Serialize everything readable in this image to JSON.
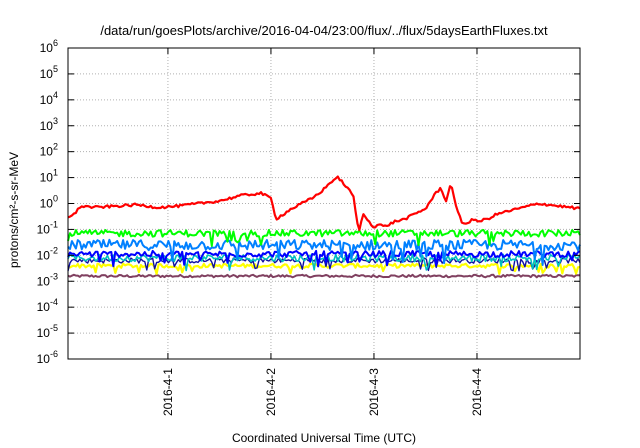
{
  "chart_data": {
    "type": "line",
    "title": "/data/run/goesPlots/archive/2016-04-04/23:00/flux/../flux/5daysEarthFluxes.txt",
    "xlabel": "Coordinated Universal Time (UTC)",
    "ylabel": "protons/cm²-s-sr-MeV",
    "x_unit": "days",
    "xlim": [
      -0.97,
      4.0
    ],
    "yscale": "log",
    "ylim_exponent": [
      -6,
      6
    ],
    "ytick_exponents": [
      -6,
      -5,
      -4,
      -3,
      -2,
      -1,
      0,
      1,
      2,
      3,
      4,
      5,
      6
    ],
    "xticks": [
      {
        "x": 0,
        "label": "2016-4-1"
      },
      {
        "x": 1,
        "label": "2016-4-2"
      },
      {
        "x": 2,
        "label": "2016-4-3"
      },
      {
        "x": 3,
        "label": "2016-4-4"
      }
    ],
    "grid": true,
    "legend": "none",
    "series": [
      {
        "color": "#ff0000",
        "width": 2.2,
        "noise": 0.05,
        "x": [
          -0.97,
          -0.9,
          -0.85,
          -0.7,
          -0.5,
          -0.3,
          -0.1,
          0.1,
          0.3,
          0.5,
          0.7,
          0.9,
          1.0,
          1.05,
          1.2,
          1.4,
          1.5,
          1.6,
          1.65,
          1.7,
          1.8,
          1.85,
          1.9,
          1.95,
          2.0,
          2.05,
          2.1,
          2.2,
          2.3,
          2.4,
          2.5,
          2.6,
          2.65,
          2.7,
          2.75,
          2.8,
          2.85,
          2.9,
          2.95,
          3.0,
          3.1,
          3.2,
          3.4,
          3.6,
          3.8,
          4.0
        ],
        "log": [
          -0.5,
          -0.4,
          -0.1,
          -0.15,
          -0.1,
          -0.05,
          -0.15,
          -0.1,
          0,
          0.1,
          0.3,
          0.4,
          0.2,
          -0.6,
          -0.2,
          0.2,
          0.5,
          0.9,
          1.0,
          0.8,
          0.3,
          -1.1,
          -0.4,
          -0.7,
          -0.9,
          -0.8,
          -0.9,
          -0.7,
          -0.6,
          -0.4,
          -0.2,
          0.4,
          0.6,
          0.1,
          0.8,
          -0.2,
          -0.7,
          -0.8,
          -0.6,
          -0.7,
          -0.6,
          -0.4,
          -0.2,
          0,
          -0.1,
          -0.2
        ]
      },
      {
        "color": "#00ff00",
        "width": 2.0,
        "noise": 0.13,
        "x": [
          -0.97,
          4.0
        ],
        "log": [
          -1.15,
          -1.15
        ]
      },
      {
        "color": "#0080ff",
        "width": 2.0,
        "noise": 0.2,
        "x": [
          -0.97,
          4.0
        ],
        "log": [
          -1.6,
          -1.6
        ]
      },
      {
        "color": "#0000ff",
        "width": 2.0,
        "noise": 0.12,
        "x": [
          -0.97,
          4.0
        ],
        "log": [
          -1.95,
          -1.95
        ]
      },
      {
        "color": "#00c0c0",
        "width": 1.6,
        "noise": 0.14,
        "x": [
          -0.97,
          4.0
        ],
        "log": [
          -2.1,
          -2.1
        ]
      },
      {
        "color": "#1010a0",
        "width": 1.4,
        "noise": 0.1,
        "x": [
          -0.97,
          4.0
        ],
        "log": [
          -2.2,
          -2.2
        ]
      },
      {
        "color": "#ffff00",
        "width": 2.2,
        "noise": 0.08,
        "x": [
          -0.97,
          4.0
        ],
        "log": [
          -2.4,
          -2.4
        ]
      },
      {
        "color": "#804060",
        "width": 2.0,
        "noise": 0.05,
        "x": [
          -0.97,
          4.0
        ],
        "log": [
          -2.8,
          -2.8
        ]
      }
    ]
  }
}
